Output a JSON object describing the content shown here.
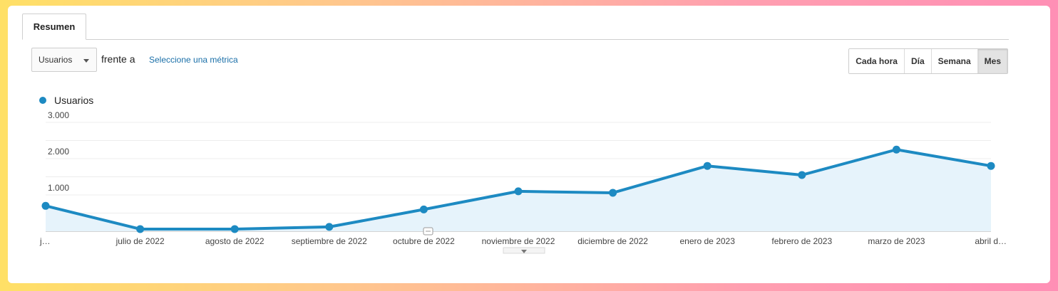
{
  "tabs": [
    {
      "label": "Resumen"
    }
  ],
  "controls": {
    "metric_selected": "Usuarios",
    "versus_label": "frente a",
    "select_metric_link": "Seleccione una métrica",
    "granularity": [
      {
        "label": "Cada hora",
        "active": false
      },
      {
        "label": "Día",
        "active": false
      },
      {
        "label": "Semana",
        "active": false
      },
      {
        "label": "Mes",
        "active": true
      }
    ]
  },
  "chart_data": {
    "type": "area",
    "series": [
      {
        "name": "Usuarios",
        "color": "#1d8ac2",
        "values": [
          700,
          60,
          60,
          120,
          600,
          1100,
          1060,
          1800,
          1550,
          2250,
          1800
        ]
      }
    ],
    "x_labels": [
      "j…",
      "julio de 2022",
      "agosto de 2022",
      "septiembre de 2022",
      "octubre de 2022",
      "noviembre de 2022",
      "diciembre de 2022",
      "enero de 2023",
      "febrero de 2023",
      "marzo de 2023",
      "abril d…"
    ],
    "y_ticks": [
      {
        "value": 1000,
        "label": "1.000"
      },
      {
        "value": 2000,
        "label": "2.000"
      },
      {
        "value": 3000,
        "label": "3.000"
      }
    ],
    "ylim": [
      0,
      3000
    ],
    "grid": true,
    "legend": "top-left"
  }
}
